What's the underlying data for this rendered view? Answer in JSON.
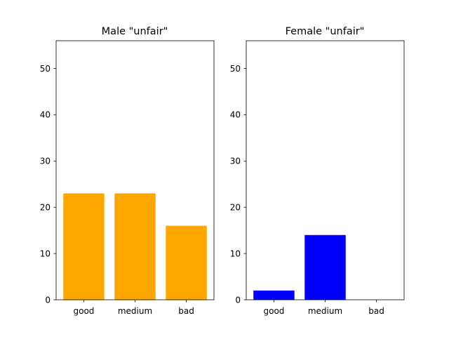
{
  "chart_data": [
    {
      "type": "bar",
      "title": "Male \"unfair\"",
      "categories": [
        "good",
        "medium",
        "bad"
      ],
      "values": [
        23,
        23,
        16
      ],
      "color": "#ffa500",
      "ylim": [
        0,
        56
      ],
      "yticks": [
        0,
        10,
        20,
        30,
        40,
        50
      ],
      "xlabel": "",
      "ylabel": "",
      "grid": false
    },
    {
      "type": "bar",
      "title": "Female \"unfair\"",
      "categories": [
        "good",
        "medium",
        "bad"
      ],
      "values": [
        2,
        14,
        0
      ],
      "color": "#0000ff",
      "ylim": [
        0,
        56
      ],
      "yticks": [
        0,
        10,
        20,
        30,
        40,
        50
      ],
      "xlabel": "",
      "ylabel": "",
      "grid": false
    }
  ]
}
